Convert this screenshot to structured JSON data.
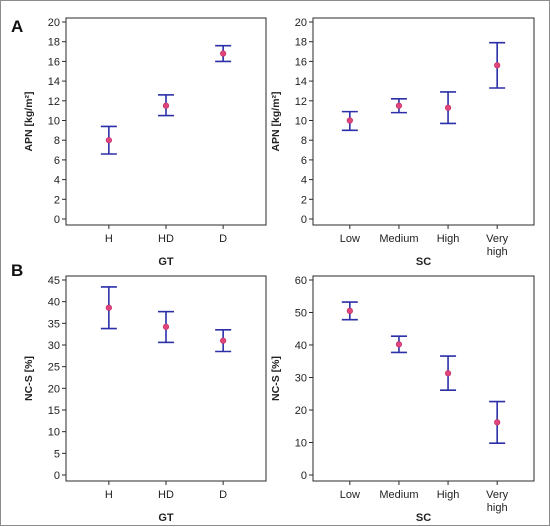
{
  "panel_labels": [
    "A",
    "B"
  ],
  "colors": {
    "axis": "#2a2a2a",
    "error_bar": "#2b2fa8",
    "marker": "#e0457b"
  },
  "chart_data": [
    {
      "type": "scatter",
      "subtype": "mean-with-error-bars",
      "xlabel": "GT",
      "ylabel": "APN [kg/m²]",
      "categories": [
        "H",
        "HD",
        "D"
      ],
      "mean": [
        8.0,
        11.5,
        16.8
      ],
      "lower": [
        6.6,
        10.5,
        16.0
      ],
      "upper": [
        9.4,
        12.6,
        17.6
      ],
      "ylim": [
        0,
        20
      ],
      "yticks": [
        0,
        2,
        4,
        6,
        8,
        10,
        12,
        14,
        16,
        18,
        20
      ]
    },
    {
      "type": "scatter",
      "subtype": "mean-with-error-bars",
      "xlabel": "SC",
      "ylabel": "APN [kg/m²]",
      "categories": [
        "Low",
        "Medium",
        "High",
        "Very\nhigh"
      ],
      "mean": [
        10.0,
        11.5,
        11.3,
        15.6
      ],
      "lower": [
        9.0,
        10.8,
        9.7,
        13.3
      ],
      "upper": [
        10.9,
        12.2,
        12.9,
        17.9
      ],
      "ylim": [
        0,
        20
      ],
      "yticks": [
        0,
        2,
        4,
        6,
        8,
        10,
        12,
        14,
        16,
        18,
        20
      ]
    },
    {
      "type": "scatter",
      "subtype": "mean-with-error-bars",
      "xlabel": "GT",
      "ylabel": "NC-S  [%]",
      "categories": [
        "H",
        "HD",
        "D"
      ],
      "mean": [
        38.6,
        34.2,
        31.0
      ],
      "lower": [
        33.8,
        30.6,
        28.5
      ],
      "upper": [
        43.4,
        37.7,
        33.5
      ],
      "ylim": [
        0,
        45
      ],
      "yticks": [
        0,
        5,
        10,
        15,
        20,
        25,
        30,
        35,
        40,
        45
      ]
    },
    {
      "type": "scatter",
      "subtype": "mean-with-error-bars",
      "xlabel": "SC",
      "ylabel": "NC-S  [%]",
      "categories": [
        "Low",
        "Medium",
        "High",
        "Very\nhigh"
      ],
      "mean": [
        50.5,
        40.2,
        31.3,
        16.2
      ],
      "lower": [
        47.8,
        37.7,
        26.1,
        9.8
      ],
      "upper": [
        53.2,
        42.7,
        36.6,
        22.6
      ],
      "ylim": [
        0,
        60
      ],
      "yticks": [
        0,
        10,
        20,
        30,
        40,
        50,
        60
      ]
    }
  ]
}
